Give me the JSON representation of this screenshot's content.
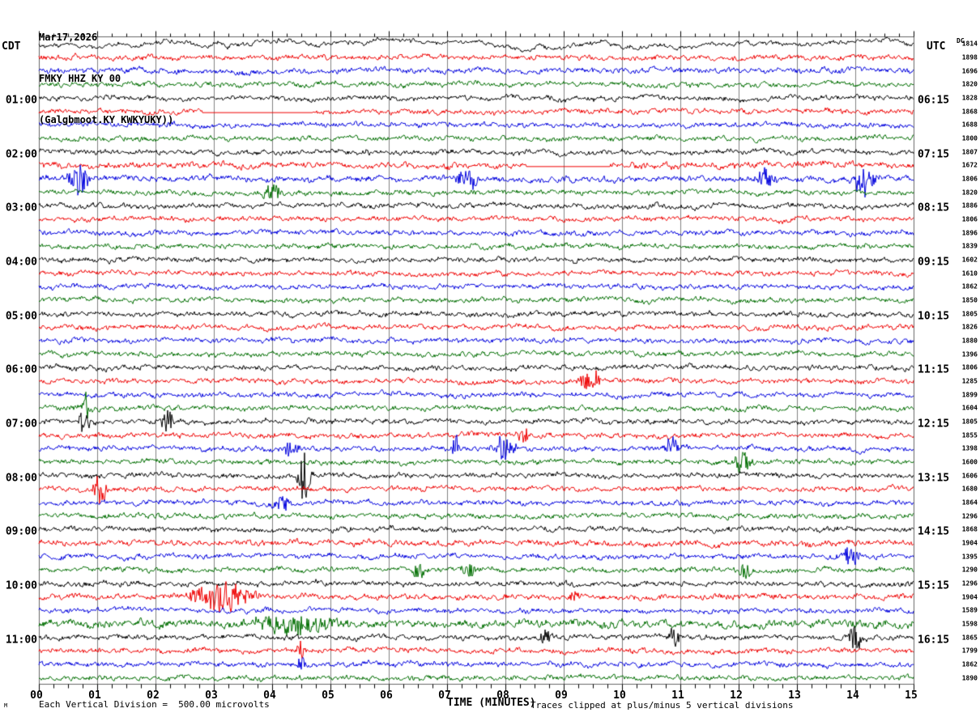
{
  "header": {
    "date": "Mar17,2026",
    "station": "FMKY HHZ KY 00",
    "location": "(Galgbmoot.KY KWKYUKY))"
  },
  "axes": {
    "left_tz": "CDT",
    "right_tz": "UTC",
    "left_labels": [
      "01:00",
      "02:00",
      "03:00",
      "04:00",
      "05:00",
      "06:00",
      "07:00",
      "08:00",
      "09:00",
      "10:00",
      "11:00"
    ],
    "right_labels": [
      "06:15",
      "07:15",
      "08:15",
      "09:15",
      "10:15",
      "11:15",
      "12:15",
      "13:15",
      "14:15",
      "15:15",
      "16:15"
    ],
    "minute_labels": [
      "00",
      "01",
      "02",
      "03",
      "04",
      "05",
      "06",
      "07",
      "08",
      "09",
      "10",
      "11",
      "12",
      "13",
      "14",
      "15"
    ]
  },
  "dc": {
    "header": "DC"
  },
  "footer": {
    "xlabel": "TIME (MINUTES)",
    "scale": "Each Vertical Division =  500.00 microvolts",
    "clip": "Traces clipped at plus/minus 5 vertical divisions",
    "watermark": "M"
  },
  "chart_data": {
    "type": "line",
    "title": "FMKY HHZ KY 00 helicorder seismogram",
    "xlabel": "TIME (MINUTES)",
    "x_range": [
      0,
      15
    ],
    "minutes_per_row": 15,
    "vertical_division_microvolts": 500.0,
    "clip_divisions": 5,
    "palette": {
      "black": "#000000",
      "red": "#ee0000",
      "blue": "#0000dd",
      "green": "#006e00"
    },
    "rows": [
      {
        "cdt": "00:00",
        "color": "black",
        "dc": 1814,
        "amp": 0.8,
        "lowfreq": true
      },
      {
        "cdt": "00:15",
        "color": "red",
        "dc": 1898
      },
      {
        "cdt": "00:30",
        "color": "blue",
        "dc": 1696,
        "amp": 1.15
      },
      {
        "cdt": "00:45",
        "color": "green",
        "dc": 1820
      },
      {
        "cdt": "01:00",
        "color": "black",
        "dc": 1828
      },
      {
        "cdt": "01:15",
        "color": "red",
        "dc": 1868
      },
      {
        "cdt": "01:30",
        "color": "blue",
        "dc": 1688
      },
      {
        "cdt": "01:45",
        "color": "green",
        "dc": 1800
      },
      {
        "cdt": "02:00",
        "color": "black",
        "dc": 1807
      },
      {
        "cdt": "02:15",
        "color": "red",
        "dc": 1672,
        "amp": 1.2
      },
      {
        "cdt": "02:30",
        "color": "blue",
        "dc": 1806,
        "amp": 1.15
      },
      {
        "cdt": "02:45",
        "color": "green",
        "dc": 1820
      },
      {
        "cdt": "03:00",
        "color": "black",
        "dc": 1886
      },
      {
        "cdt": "03:15",
        "color": "red",
        "dc": 1806
      },
      {
        "cdt": "03:30",
        "color": "blue",
        "dc": 1896
      },
      {
        "cdt": "03:45",
        "color": "green",
        "dc": 1839
      },
      {
        "cdt": "04:00",
        "color": "black",
        "dc": 1602
      },
      {
        "cdt": "04:15",
        "color": "red",
        "dc": 1610
      },
      {
        "cdt": "04:30",
        "color": "blue",
        "dc": 1862
      },
      {
        "cdt": "04:45",
        "color": "green",
        "dc": 1850
      },
      {
        "cdt": "05:00",
        "color": "black",
        "dc": 1805
      },
      {
        "cdt": "05:15",
        "color": "red",
        "dc": 1826
      },
      {
        "cdt": "05:30",
        "color": "blue",
        "dc": 1880
      },
      {
        "cdt": "05:45",
        "color": "green",
        "dc": 1396
      },
      {
        "cdt": "06:00",
        "color": "black",
        "dc": 1806
      },
      {
        "cdt": "06:15",
        "color": "red",
        "dc": 1285
      },
      {
        "cdt": "06:30",
        "color": "blue",
        "dc": 1899
      },
      {
        "cdt": "06:45",
        "color": "green",
        "dc": 1604
      },
      {
        "cdt": "07:00",
        "color": "black",
        "dc": 1805
      },
      {
        "cdt": "07:15",
        "color": "red",
        "dc": 1855
      },
      {
        "cdt": "07:30",
        "color": "blue",
        "dc": 1398
      },
      {
        "cdt": "07:45",
        "color": "green",
        "dc": 1600
      },
      {
        "cdt": "08:00",
        "color": "black",
        "dc": 1606
      },
      {
        "cdt": "08:15",
        "color": "red",
        "dc": 1680
      },
      {
        "cdt": "08:30",
        "color": "blue",
        "dc": 1864
      },
      {
        "cdt": "08:45",
        "color": "green",
        "dc": 1296
      },
      {
        "cdt": "09:00",
        "color": "black",
        "dc": 1868
      },
      {
        "cdt": "09:15",
        "color": "red",
        "dc": 1904,
        "amp": 1.15
      },
      {
        "cdt": "09:30",
        "color": "blue",
        "dc": 1395
      },
      {
        "cdt": "09:45",
        "color": "green",
        "dc": 1290
      },
      {
        "cdt": "10:00",
        "color": "black",
        "dc": 1296
      },
      {
        "cdt": "10:15",
        "color": "red",
        "dc": 1904,
        "amp": 1.1
      },
      {
        "cdt": "10:30",
        "color": "blue",
        "dc": 1589
      },
      {
        "cdt": "10:45",
        "color": "green",
        "dc": 1598,
        "amp": 1.5
      },
      {
        "cdt": "11:00",
        "color": "black",
        "dc": 1865
      },
      {
        "cdt": "11:15",
        "color": "red",
        "dc": 1799
      },
      {
        "cdt": "11:30",
        "color": "blue",
        "dc": 1862
      },
      {
        "cdt": "11:45",
        "color": "green",
        "dc": 1890
      }
    ],
    "events": [
      {
        "row": 10,
        "min": 0.68,
        "amp": 24,
        "w": 0.1
      },
      {
        "row": 10,
        "min": 7.35,
        "amp": 15,
        "w": 0.12
      },
      {
        "row": 10,
        "min": 12.45,
        "amp": 12,
        "w": 0.1
      },
      {
        "row": 10,
        "min": 14.15,
        "amp": 19,
        "w": 0.12
      },
      {
        "row": 11,
        "min": 4.0,
        "amp": 14,
        "w": 0.1
      },
      {
        "row": 25,
        "min": 9.45,
        "amp": 15,
        "w": 0.12
      },
      {
        "row": 27,
        "min": 0.79,
        "amp": 19,
        "w": 0.06
      },
      {
        "row": 28,
        "min": 0.78,
        "amp": 17,
        "w": 0.08
      },
      {
        "row": 28,
        "min": 2.2,
        "amp": 19,
        "w": 0.06
      },
      {
        "row": 29,
        "min": 8.3,
        "amp": 12,
        "w": 0.06
      },
      {
        "row": 30,
        "min": 4.35,
        "amp": 15,
        "w": 0.08
      },
      {
        "row": 30,
        "min": 7.15,
        "amp": 19,
        "w": 0.05
      },
      {
        "row": 30,
        "min": 8.0,
        "amp": 21,
        "w": 0.12
      },
      {
        "row": 30,
        "min": 10.85,
        "amp": 12,
        "w": 0.08
      },
      {
        "row": 31,
        "min": 12.05,
        "amp": 15,
        "w": 0.1
      },
      {
        "row": 32,
        "min": 4.55,
        "amp": 34,
        "w": 0.07
      },
      {
        "row": 33,
        "min": 1.05,
        "amp": 19,
        "w": 0.08
      },
      {
        "row": 34,
        "min": 4.15,
        "amp": 10,
        "w": 0.1
      },
      {
        "row": 38,
        "min": 13.9,
        "amp": 10,
        "w": 0.12
      },
      {
        "row": 39,
        "min": 6.5,
        "amp": 13,
        "w": 0.07,
        "dir": -1
      },
      {
        "row": 39,
        "min": 7.4,
        "amp": 11,
        "w": 0.1
      },
      {
        "row": 39,
        "min": 12.1,
        "amp": 11,
        "w": 0.08
      },
      {
        "row": 41,
        "min": 3.1,
        "amp": 24,
        "w": 0.3
      },
      {
        "row": 41,
        "min": 9.2,
        "amp": 13,
        "w": 0.05
      },
      {
        "row": 43,
        "min": 4.4,
        "amp": 12,
        "w": 0.5
      },
      {
        "row": 44,
        "min": 8.7,
        "amp": 13,
        "w": 0.06
      },
      {
        "row": 44,
        "min": 10.9,
        "amp": 15,
        "w": 0.06
      },
      {
        "row": 44,
        "min": 14.0,
        "amp": 21,
        "w": 0.07
      },
      {
        "row": 45,
        "min": 4.5,
        "amp": 15,
        "w": 0.05
      },
      {
        "row": 46,
        "min": 4.5,
        "amp": 11,
        "w": 0.05
      }
    ],
    "flat_segments": [
      {
        "row": 5,
        "from": 2.8,
        "to": 4.7
      },
      {
        "row": 9,
        "from": 8.35,
        "to": 9.8
      }
    ]
  }
}
